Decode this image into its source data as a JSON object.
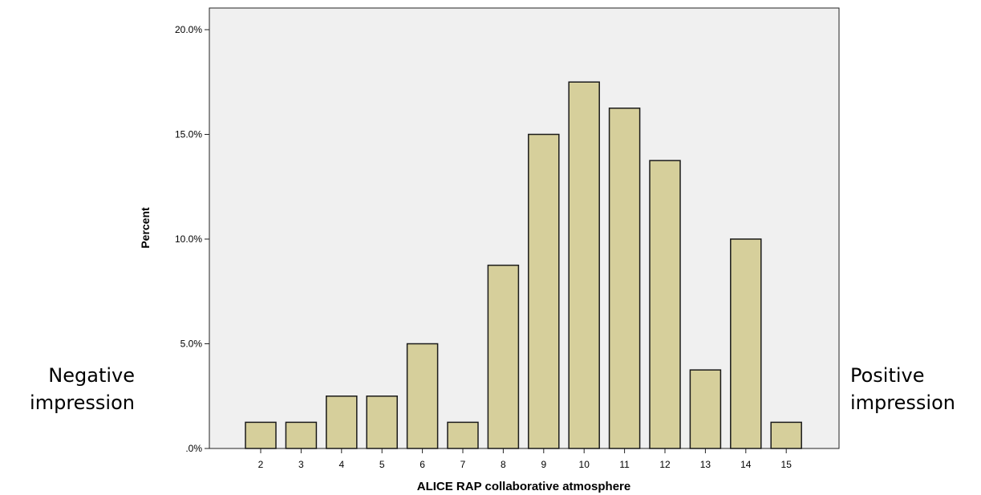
{
  "chart_data": {
    "type": "bar",
    "title": "",
    "xlabel": "ALICE RAP collaborative atmosphere",
    "ylabel": "Percent",
    "categories": [
      "2",
      "3",
      "4",
      "5",
      "6",
      "7",
      "8",
      "9",
      "10",
      "11",
      "12",
      "13",
      "14",
      "15"
    ],
    "values": [
      1.25,
      1.25,
      2.5,
      2.5,
      5.0,
      1.25,
      8.75,
      15.0,
      17.5,
      16.25,
      13.75,
      3.75,
      10.0,
      1.25
    ],
    "ylim": [
      0,
      20
    ],
    "yticks": [
      0,
      5,
      10,
      15,
      20
    ],
    "ytick_labels": [
      ".0%",
      "5.0%",
      "10.0%",
      "15.0%",
      "20.0%"
    ],
    "grid": false,
    "colors": {
      "bar_fill": "#d6cf9b",
      "bar_stroke": "#1a1a1a",
      "plot_bg": "#f0f0f0"
    }
  },
  "annotations": {
    "negative": [
      "Negative",
      "impression"
    ],
    "positive": [
      "Positive",
      "impression"
    ]
  }
}
